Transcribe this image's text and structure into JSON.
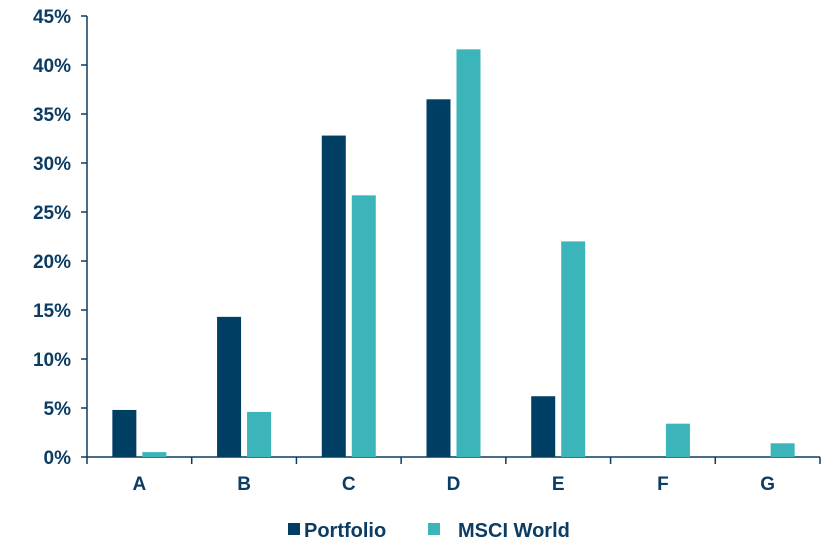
{
  "colors": {
    "portfolio": "#003e63",
    "msci_world": "#3bb5b9",
    "axis": "#0b3c63",
    "text": "#0b3c63"
  },
  "chart_data": {
    "type": "bar",
    "title": "",
    "xlabel": "",
    "ylabel": "",
    "categories": [
      "A",
      "B",
      "C",
      "D",
      "E",
      "F",
      "G"
    ],
    "series": [
      {
        "name": "Portfolio",
        "color": "#003e63",
        "values": [
          4.8,
          14.3,
          32.8,
          36.5,
          6.2,
          0,
          0
        ]
      },
      {
        "name": "MSCI World",
        "color": "#3bb5b9",
        "values": [
          0.5,
          4.6,
          26.7,
          41.6,
          22.0,
          3.4,
          1.4
        ]
      }
    ],
    "ylim": [
      0,
      45
    ],
    "yticks": [
      0,
      5,
      10,
      15,
      20,
      25,
      30,
      35,
      40,
      45
    ],
    "ytick_labels": [
      "0%",
      "5%",
      "10%",
      "15%",
      "20%",
      "25%",
      "30%",
      "35%",
      "40%",
      "45%"
    ],
    "grid": false,
    "legend_position": "bottom"
  }
}
